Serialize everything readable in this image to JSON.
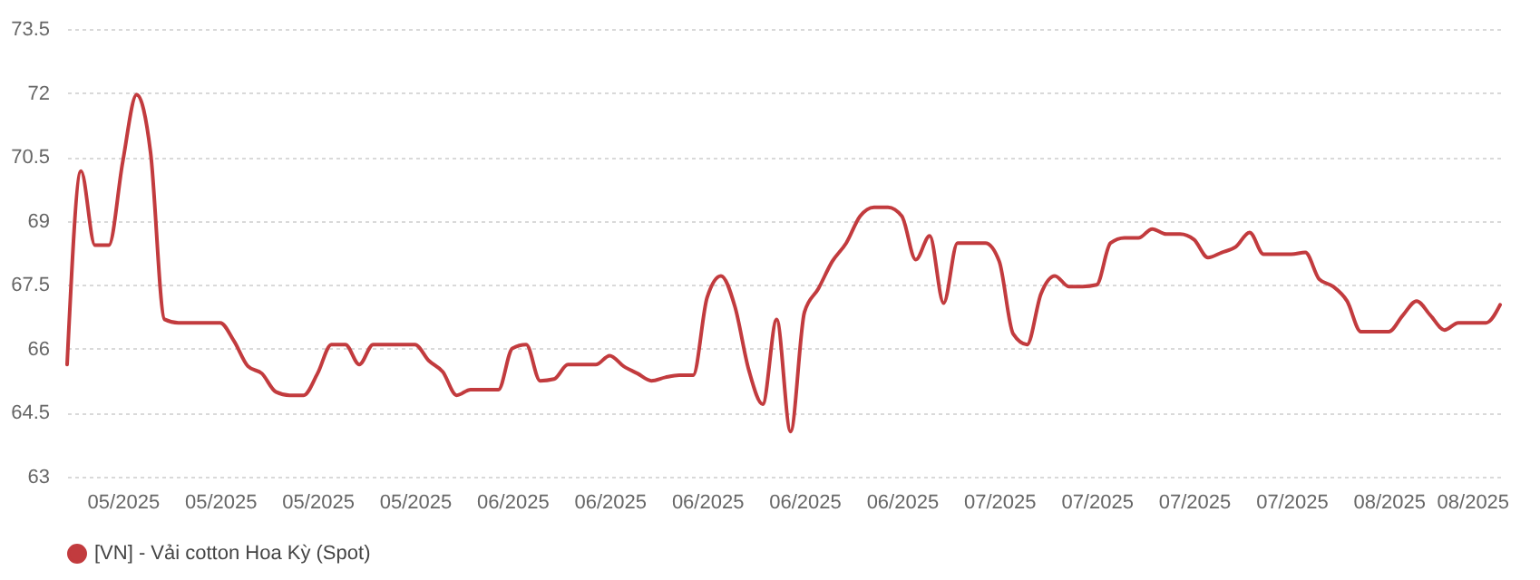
{
  "chart_data": {
    "type": "line",
    "categories": [
      null,
      null,
      null,
      null,
      "05/2025",
      null,
      null,
      null,
      null,
      null,
      null,
      "05/2025",
      null,
      null,
      null,
      null,
      null,
      null,
      "05/2025",
      null,
      null,
      null,
      null,
      null,
      null,
      "05/2025",
      null,
      null,
      null,
      null,
      null,
      null,
      "06/2025",
      null,
      null,
      null,
      null,
      null,
      null,
      "06/2025",
      null,
      null,
      null,
      null,
      null,
      null,
      "06/2025",
      null,
      null,
      null,
      null,
      null,
      null,
      "06/2025",
      null,
      null,
      null,
      null,
      null,
      null,
      "06/2025",
      null,
      null,
      null,
      null,
      null,
      null,
      "07/2025",
      null,
      null,
      null,
      null,
      null,
      null,
      "07/2025",
      null,
      null,
      null,
      null,
      null,
      null,
      "07/2025",
      null,
      null,
      null,
      null,
      null,
      null,
      "07/2025",
      null,
      null,
      null,
      null,
      null,
      null,
      "08/2025",
      null,
      null,
      null,
      null,
      null,
      "08/2025",
      null,
      null
    ],
    "series": [
      {
        "name": "[VN] - Vải cotton Hoa Kỳ (Spot)",
        "color": "#c23b3e",
        "values": [
          65.63,
          70.17,
          68.43,
          68.43,
          70.39,
          71.96,
          70.6,
          66.69,
          66.61,
          66.61,
          66.61,
          66.61,
          66.18,
          65.59,
          65.42,
          64.99,
          64.91,
          64.91,
          65.42,
          66.1,
          66.1,
          65.63,
          66.1,
          66.1,
          66.1,
          66.1,
          65.72,
          65.46,
          64.91,
          65.04,
          65.04,
          65.04,
          66.01,
          66.1,
          65.25,
          65.29,
          65.63,
          65.63,
          65.63,
          65.84,
          65.59,
          65.42,
          65.25,
          65.33,
          65.38,
          65.38,
          67.2,
          67.71,
          66.99,
          65.5,
          64.7,
          66.69,
          64.06,
          66.86,
          67.41,
          68.05,
          68.48,
          69.11,
          69.32,
          69.32,
          69.11,
          68.09,
          68.65,
          67.07,
          68.48,
          68.48,
          68.48,
          68.05,
          66.35,
          66.1,
          67.29,
          67.71,
          67.46,
          67.46,
          67.5,
          68.48,
          68.6,
          68.6,
          68.81,
          68.69,
          68.69,
          68.56,
          68.14,
          68.26,
          68.39,
          68.73,
          68.22,
          68.22,
          68.22,
          68.26,
          67.63,
          67.46,
          67.12,
          66.4,
          66.4,
          66.4,
          66.78,
          67.12,
          66.78,
          66.44,
          66.61,
          66.61,
          66.61,
          67.03
        ]
      }
    ],
    "ylim": [
      63,
      73.5
    ],
    "yticks": [
      63,
      64.5,
      66,
      67.5,
      69,
      70.5,
      72,
      73.5
    ],
    "grid": "y",
    "legend": "bottom",
    "line_style": "solid"
  }
}
